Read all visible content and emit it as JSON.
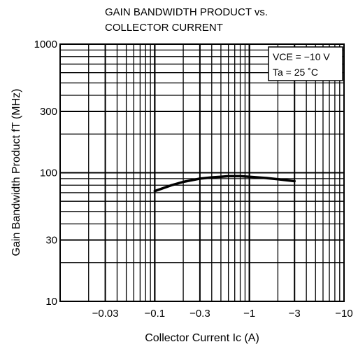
{
  "chart_data": {
    "type": "line",
    "title": [
      "GAIN BANDWIDTH PRODUCT vs.",
      "COLLECTOR CURRENT"
    ],
    "xlabel": "Collector Current  Ic  (A)",
    "ylabel": "Gain Bandwidth Product  fT  (MHz)",
    "x_scale": "log",
    "y_scale": "log",
    "xlim": [
      -0.01,
      -10
    ],
    "ylim": [
      10,
      1000
    ],
    "x_ticks": [
      {
        "value": -0.03,
        "label": "−0.03"
      },
      {
        "value": -0.1,
        "label": "−0.1"
      },
      {
        "value": -0.3,
        "label": "−0.3"
      },
      {
        "value": -1,
        "label": "−1"
      },
      {
        "value": -3,
        "label": "−3"
      },
      {
        "value": -10,
        "label": "−10"
      }
    ],
    "y_ticks": [
      {
        "value": 10,
        "label": "10"
      },
      {
        "value": 30,
        "label": "30"
      },
      {
        "value": 100,
        "label": "100"
      },
      {
        "value": 300,
        "label": "300"
      },
      {
        "value": 1000,
        "label": "1000"
      }
    ],
    "grid": true,
    "legend_position": "top-right",
    "conditions": [
      "VCE = −10 V",
      "Ta = 25 ˚C"
    ],
    "series": [
      {
        "x": [
          -0.1,
          -0.15,
          -0.2,
          -0.3,
          -0.4,
          -0.5,
          -0.6,
          -0.7,
          -0.8,
          -1,
          -1.5,
          -2,
          -3
        ],
        "y": [
          72,
          80,
          85,
          90,
          92,
          93,
          94,
          94,
          94,
          93,
          91,
          89,
          86
        ]
      }
    ]
  }
}
